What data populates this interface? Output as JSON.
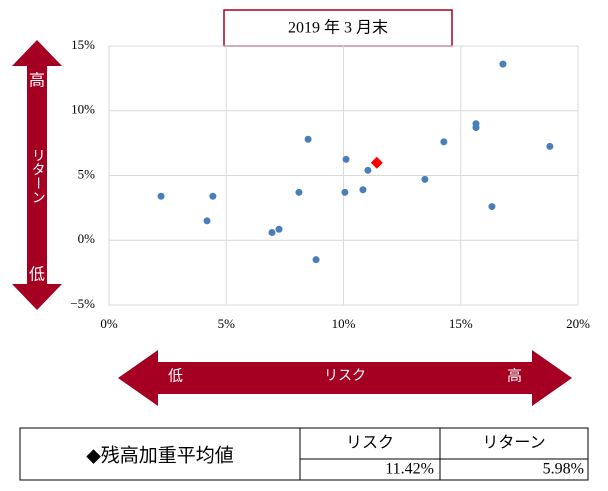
{
  "chart_data": {
    "type": "scatter",
    "title": "2019 年 3 月末",
    "xlim": [
      0,
      20
    ],
    "ylim": [
      -5,
      15
    ],
    "xticks": [
      {
        "value": 0,
        "label": "0%"
      },
      {
        "value": 5,
        "label": "5%"
      },
      {
        "value": 10,
        "label": "10%"
      },
      {
        "value": 15,
        "label": "15%"
      },
      {
        "value": 20,
        "label": "20%"
      }
    ],
    "yticks": [
      {
        "value": -5,
        "label": "−5%"
      },
      {
        "value": 0,
        "label": "0%"
      },
      {
        "value": 5,
        "label": "5%"
      },
      {
        "value": 10,
        "label": "10%"
      },
      {
        "value": 15,
        "label": "15%"
      }
    ],
    "grid": true,
    "series": [
      {
        "color": "#4a7ebb",
        "marker": "circle",
        "x": [
          2.22,
          4.18,
          4.43,
          6.95,
          7.25,
          8.1,
          8.49,
          8.83,
          10.06,
          10.11,
          10.83,
          11.04,
          13.47,
          14.28,
          15.65,
          15.65,
          16.33,
          16.8,
          18.8
        ],
        "values": [
          3.4,
          1.5,
          3.4,
          0.6,
          0.85,
          3.7,
          7.8,
          -1.5,
          3.7,
          6.25,
          3.9,
          5.4,
          4.7,
          7.6,
          9.0,
          8.7,
          2.6,
          13.6,
          7.25
        ]
      },
      {
        "color": "#ff0000",
        "marker": "diamond",
        "x": [
          11.42
        ],
        "values": [
          5.98
        ]
      }
    ],
    "y_arrow": {
      "top": "高",
      "middle": "リターン",
      "bottom": "低"
    },
    "x_arrow": {
      "left": "低",
      "middle": "リスク",
      "right": "高"
    }
  },
  "table": {
    "label": "◆残高加重平均値",
    "header": [
      "リスク",
      "リターン"
    ],
    "rows": [
      [
        "11.42%",
        "5.98%"
      ]
    ]
  }
}
